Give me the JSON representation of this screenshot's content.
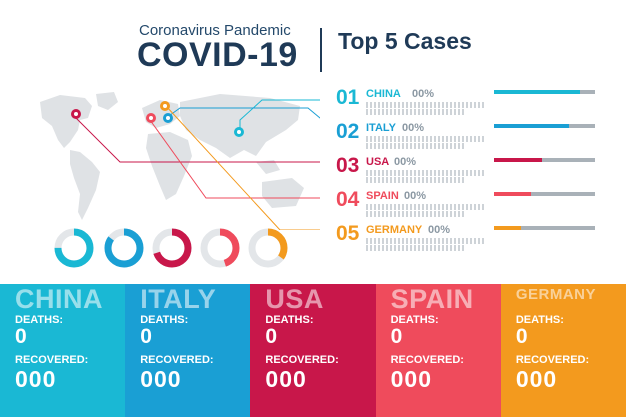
{
  "header": {
    "subtitle": "Coronavirus Pandemic",
    "title": "COVID-19",
    "top5_title": "Top 5 Cases"
  },
  "ranking": [
    {
      "num": "01",
      "country": "CHINA",
      "pct": "00%",
      "color": "#1ab8d4",
      "bar_fill": 0.85
    },
    {
      "num": "02",
      "country": "ITALY",
      "pct": "00%",
      "color": "#1a9fd4",
      "bar_fill": 0.74
    },
    {
      "num": "03",
      "country": "USA",
      "pct": "00%",
      "color": "#c8174a",
      "bar_fill": 0.48
    },
    {
      "num": "04",
      "country": "SPAIN",
      "pct": "00%",
      "color": "#ef4b5c",
      "bar_fill": 0.37
    },
    {
      "num": "05",
      "country": "GERMANY",
      "pct": "00%",
      "color": "#f39a1e",
      "bar_fill": 0.27
    }
  ],
  "rings": [
    {
      "color": "#1ab8d4",
      "fraction": 0.75
    },
    {
      "color": "#1a9fd4",
      "fraction": 0.85
    },
    {
      "color": "#c8174a",
      "fraction": 0.7
    },
    {
      "color": "#ef4b5c",
      "fraction": 0.45
    },
    {
      "color": "#f39a1e",
      "fraction": 0.35
    }
  ],
  "cards": [
    {
      "name": "CHINA",
      "deaths_label": "DEATHS:",
      "deaths": "0",
      "recovered_label": "RECOVERED:",
      "recovered": "000",
      "color": "#1ab8d4"
    },
    {
      "name": "ITALY",
      "deaths_label": "DEATHS:",
      "deaths": "0",
      "recovered_label": "RECOVERED:",
      "recovered": "000",
      "color": "#1a9fd4"
    },
    {
      "name": "USA",
      "deaths_label": "DEATHS:",
      "deaths": "0",
      "recovered_label": "RECOVERED:",
      "recovered": "000",
      "color": "#c8174a"
    },
    {
      "name": "SPAIN",
      "deaths_label": "DEATHS:",
      "deaths": "0",
      "recovered_label": "RECOVERED:",
      "recovered": "000",
      "color": "#ef4b5c"
    },
    {
      "name": "GERMANY",
      "deaths_label": "DEATHS:",
      "deaths": "0",
      "recovered_label": "RECOVERED:",
      "recovered": "000",
      "color": "#f39a1e"
    }
  ]
}
